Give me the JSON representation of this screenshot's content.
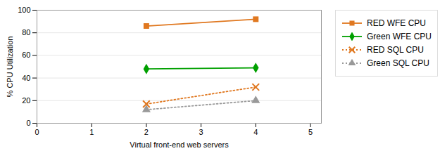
{
  "chart_data": {
    "type": "line",
    "x": [
      2,
      4
    ],
    "series": [
      {
        "name": "RED WFE CPU",
        "color": "#E07820",
        "values": [
          86,
          92
        ],
        "marker": "square",
        "line_style": "solid"
      },
      {
        "name": "Green WFE CPU",
        "color": "#00A000",
        "values": [
          48,
          49
        ],
        "marker": "diamond",
        "line_style": "solid"
      },
      {
        "name": "RED SQL CPU",
        "color": "#E07820",
        "values": [
          17,
          32
        ],
        "marker": "x",
        "line_style": "dotted"
      },
      {
        "name": "Green SQL CPU",
        "color": "#999999",
        "values": [
          12,
          20
        ],
        "marker": "triangle",
        "line_style": "dotted"
      }
    ],
    "xlabel": "Virtual front-end web servers",
    "ylabel": "% CPU Utilization",
    "xlim": [
      0,
      5.2
    ],
    "xticks": [
      0,
      1,
      2,
      3,
      4,
      5
    ],
    "ylim": [
      0,
      100
    ],
    "yticks": [
      0,
      20,
      40,
      60,
      80,
      100
    ],
    "grid": "y",
    "legend": "right"
  }
}
